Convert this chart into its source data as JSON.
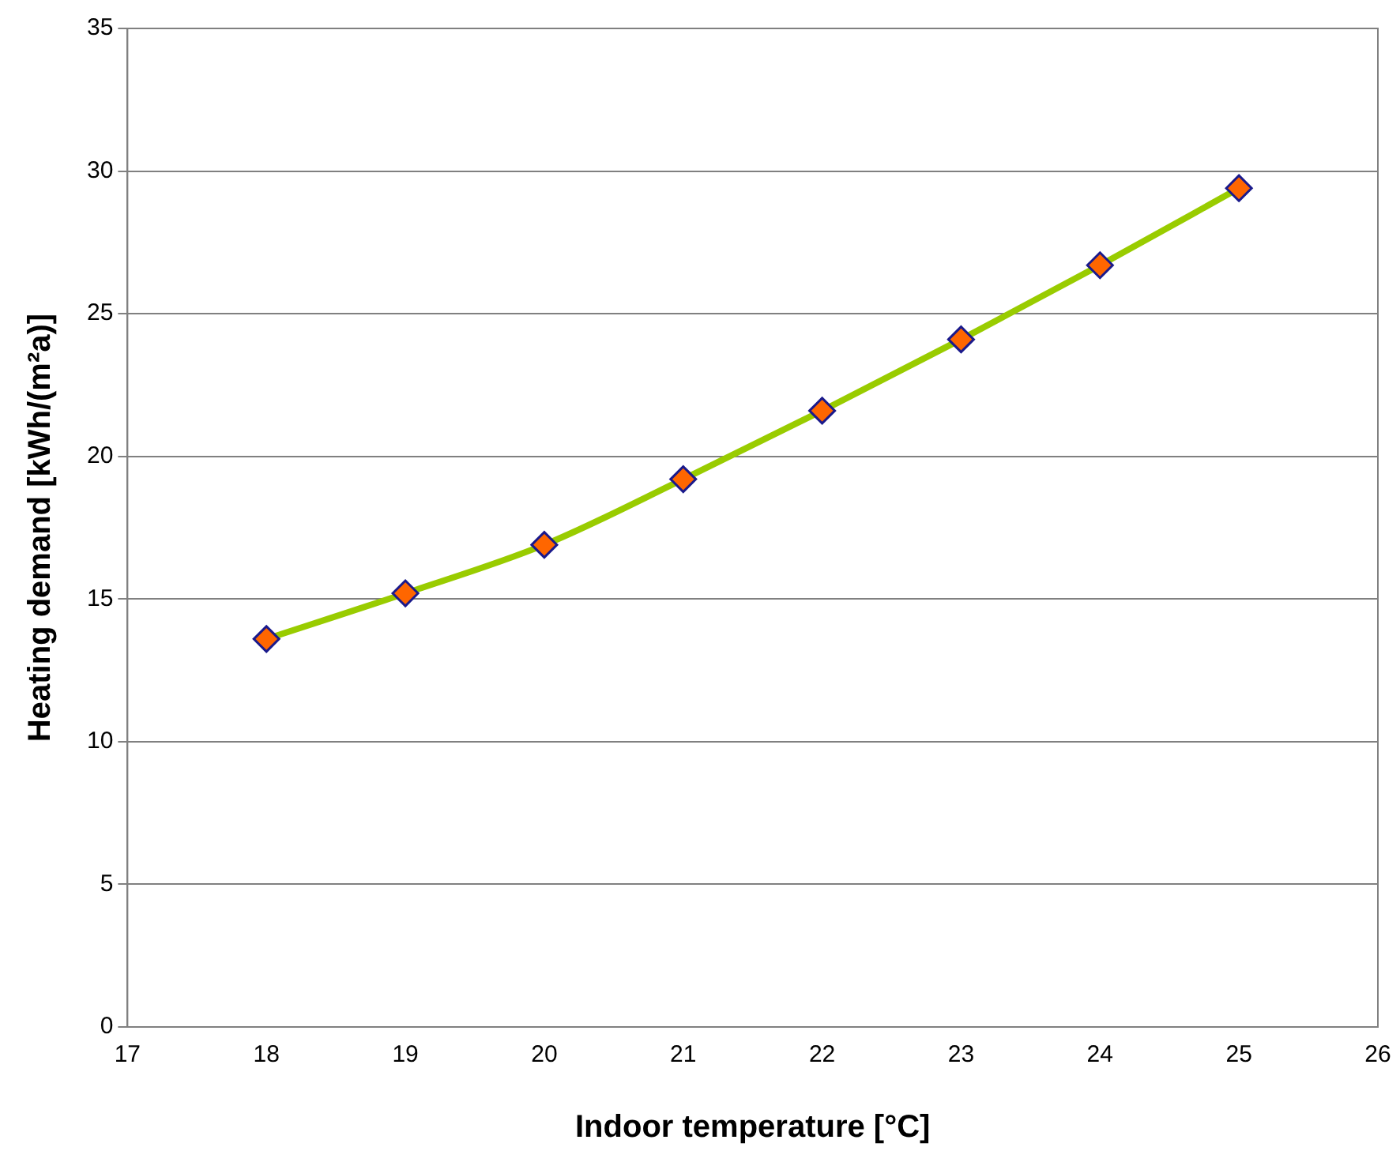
{
  "chart_data": {
    "type": "line",
    "xlabel": "Indoor temperature [°C]",
    "ylabel": "Heating demand [kWh/(m²a)]",
    "x": [
      18,
      19,
      20,
      21,
      22,
      23,
      24,
      25
    ],
    "series": [
      {
        "color": "#99cc00",
        "values": [
          13.6,
          15.2,
          16.9,
          19.2,
          21.6,
          24.1,
          26.7,
          29.4
        ]
      }
    ],
    "xlim": [
      17,
      26
    ],
    "xticks": [
      17,
      18,
      19,
      20,
      21,
      22,
      23,
      24,
      25,
      26
    ],
    "ylim": [
      0,
      35
    ],
    "yticks": [
      0,
      5,
      10,
      15,
      20,
      25,
      30,
      35
    ],
    "grid": "y",
    "legend": false,
    "marker": "diamond",
    "line_style": "solid"
  }
}
